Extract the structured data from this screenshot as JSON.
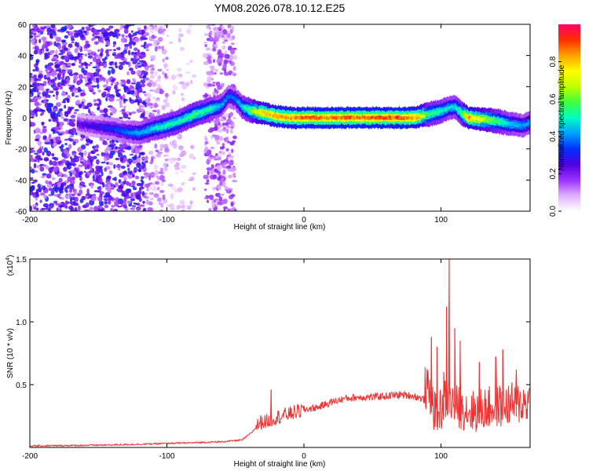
{
  "title": "YM08.2026.078.10.12.E25",
  "chart_data": [
    {
      "type": "heatmap",
      "title": "YM08.2026.078.10.12.E25",
      "xlabel": "Height of straight line (km)",
      "ylabel": "Frequency (Hz)",
      "xlim": [
        -200,
        165
      ],
      "ylim": [
        -60,
        60
      ],
      "x_ticks": [
        "-200",
        "-100",
        "0",
        "100"
      ],
      "y_ticks": [
        "60",
        "40",
        "20",
        "0",
        "-20",
        "-40",
        "-60"
      ],
      "colorbar": {
        "label": "Normalized spectral amplitude",
        "range": [
          0,
          1
        ],
        "ticks": [
          "0.0",
          "0.2",
          "0.4",
          "0.6",
          "0.8"
        ],
        "colormap": [
          "#ffffff",
          "#e0b0ff",
          "#9b30ff",
          "#5000e0",
          "#0030ff",
          "#00a0ff",
          "#00ffc0",
          "#40ff40",
          "#c0ff00",
          "#ffff00",
          "#ffa000",
          "#ff3000",
          "#ff0066"
        ]
      },
      "ridge": {
        "x": [
          -165,
          -150,
          -140,
          -130,
          -120,
          -110,
          -100,
          -90,
          -80,
          -70,
          -60,
          -55,
          -50,
          -45,
          -40,
          -35,
          -30,
          -20,
          -10,
          0,
          10,
          20,
          30,
          40,
          50,
          60,
          70,
          80,
          85,
          90,
          100,
          105,
          110,
          115,
          120,
          130,
          140,
          150,
          160,
          165
        ],
        "freq": [
          -4,
          -6,
          -7,
          -9,
          -10,
          -7,
          -5,
          -2,
          2,
          5,
          8,
          14,
          12,
          7,
          5,
          4,
          3,
          1,
          0,
          0,
          0,
          0,
          0,
          0,
          0,
          0,
          0,
          0,
          1,
          2,
          4,
          6,
          7,
          3,
          0,
          -1,
          -2,
          -4,
          -5,
          -3
        ],
        "amplitude": [
          0.25,
          0.3,
          0.35,
          0.4,
          0.45,
          0.5,
          0.55,
          0.55,
          0.6,
          0.55,
          0.45,
          0.4,
          0.4,
          0.5,
          0.6,
          0.75,
          0.85,
          0.9,
          0.9,
          0.95,
          0.95,
          0.95,
          0.95,
          0.95,
          0.95,
          0.95,
          0.95,
          0.9,
          0.85,
          0.6,
          0.55,
          0.5,
          0.5,
          0.6,
          0.9,
          0.75,
          0.6,
          0.5,
          0.45,
          0.45
        ]
      }
    },
    {
      "type": "line",
      "xlabel": "Height of straight line (km)",
      "ylabel": "SNR (10 * v/v)",
      "y_multiplier_label": "(x10",
      "y_multiplier_exponent": "4",
      "y_multiplier_close": ")",
      "xlim": [
        -200,
        165
      ],
      "ylim": [
        0,
        1.5
      ],
      "x_ticks": [
        "-200",
        "-100",
        "0",
        "100"
      ],
      "y_ticks": [
        "0.5",
        "1.0",
        "1.5"
      ],
      "series": [
        {
          "name": "SNR",
          "color": "#ee3333",
          "x": [
            -200,
            -180,
            -160,
            -140,
            -120,
            -100,
            -80,
            -60,
            -45,
            -38,
            -32,
            -26,
            -20,
            -10,
            0,
            10,
            20,
            30,
            40,
            50,
            60,
            70,
            80,
            88,
            92,
            96,
            100,
            104,
            108,
            112,
            118,
            124,
            130,
            140,
            150,
            160,
            165
          ],
          "y": [
            0.012,
            0.014,
            0.017,
            0.02,
            0.025,
            0.032,
            0.038,
            0.045,
            0.06,
            0.12,
            0.2,
            0.21,
            0.24,
            0.27,
            0.3,
            0.32,
            0.36,
            0.39,
            0.4,
            0.4,
            0.41,
            0.42,
            0.41,
            0.38,
            0.32,
            0.15,
            0.2,
            0.3,
            0.25,
            0.22,
            0.2,
            0.18,
            0.2,
            0.22,
            0.24,
            0.25,
            0.26
          ],
          "peaks": [
            {
              "x": -24,
              "y": 0.46
            },
            {
              "x": 93,
              "y": 0.88
            },
            {
              "x": 97,
              "y": 0.8
            },
            {
              "x": 102,
              "y": 0.6
            },
            {
              "x": 104,
              "y": 1.12
            },
            {
              "x": 106,
              "y": 1.5
            },
            {
              "x": 110,
              "y": 0.95
            },
            {
              "x": 114,
              "y": 0.85
            },
            {
              "x": 128,
              "y": 0.68
            },
            {
              "x": 140,
              "y": 0.72
            },
            {
              "x": 145,
              "y": 0.78
            },
            {
              "x": 155,
              "y": 0.62
            }
          ]
        }
      ]
    }
  ]
}
